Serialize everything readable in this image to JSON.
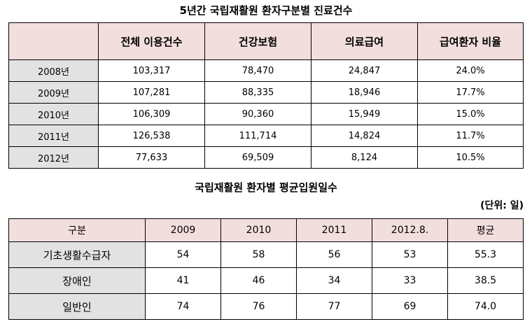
{
  "table1": {
    "title": "5년간 국립재활원 환자구분별 진료건수",
    "headers": [
      "",
      "전체 이용건수",
      "건강보험",
      "의료급여",
      "급여환자 비율"
    ],
    "rows": [
      {
        "year": "2008년",
        "total": "103,317",
        "insurance": "78,470",
        "aid": "24,847",
        "ratio": "24.0%"
      },
      {
        "year": "2009년",
        "total": "107,281",
        "insurance": "88,335",
        "aid": "18,946",
        "ratio": "17.7%"
      },
      {
        "year": "2010년",
        "total": "106,309",
        "insurance": "90,360",
        "aid": "15,949",
        "ratio": "15.0%"
      },
      {
        "year": "2011년",
        "total": "126,538",
        "insurance": "111,714",
        "aid": "14,824",
        "ratio": "11.7%"
      },
      {
        "year": "2012년",
        "total": "77,633",
        "insurance": "69,509",
        "aid": "8,124",
        "ratio": "10.5%"
      }
    ]
  },
  "table2": {
    "title": "국립재활원 환자별 평균입원일수",
    "unit": "(단위: 일)",
    "headers": [
      "구분",
      "2009",
      "2010",
      "2011",
      "2012.8.",
      "평균"
    ],
    "rows": [
      {
        "label": "기초생활수급자",
        "v2009": "54",
        "v2010": "58",
        "v2011": "56",
        "v2012": "53",
        "avg": "55.3"
      },
      {
        "label": "장애인",
        "v2009": "41",
        "v2010": "46",
        "v2011": "34",
        "v2012": "33",
        "avg": "38.5"
      },
      {
        "label": "일반인",
        "v2009": "74",
        "v2010": "76",
        "v2011": "77",
        "v2012": "69",
        "avg": "74.0"
      }
    ]
  }
}
